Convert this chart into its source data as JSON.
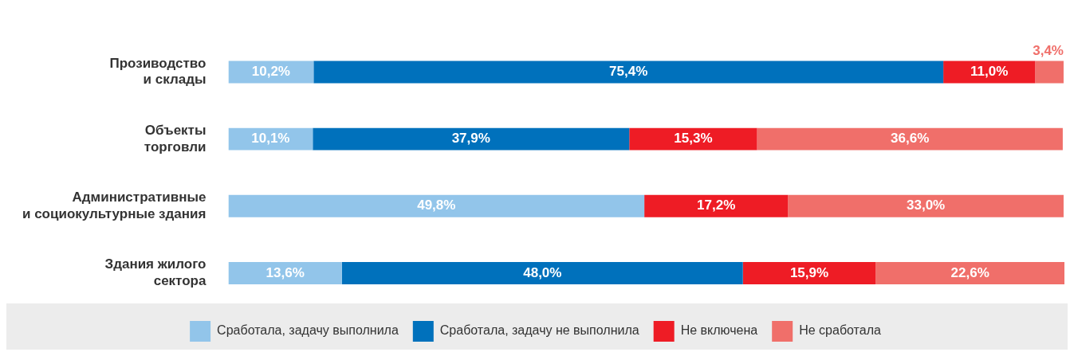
{
  "chart_data": {
    "type": "bar",
    "orientation": "horizontal",
    "stacked": true,
    "categories": [
      "Прозиводство\nи склады",
      "Объекты\nторговли",
      "Административные\nи социокультурные здания",
      "Здания жилого\nсектора"
    ],
    "series": [
      {
        "name": "Сработала, задачу выполнила",
        "color": "#92c5ea",
        "values": [
          10.2,
          10.1,
          49.8,
          13.6
        ],
        "value_labels": [
          "10,2%",
          "10,1%",
          "49,8%",
          "13,6%"
        ]
      },
      {
        "name": "Сработала, задачу не выполнила",
        "color": "#0071bc",
        "values": [
          75.4,
          37.9,
          null,
          48.0
        ],
        "value_labels": [
          "75,4%",
          "37,9%",
          null,
          "48,0%"
        ]
      },
      {
        "name": "Не включена",
        "color": "#ee1c25",
        "values": [
          11.0,
          15.3,
          17.2,
          15.9
        ],
        "value_labels": [
          "11,0%",
          "15,3%",
          "17,2%",
          "15,9%"
        ]
      },
      {
        "name": "Не сработала",
        "color": "#f06f6a",
        "values": [
          3.4,
          36.6,
          33.0,
          22.6
        ],
        "value_labels": [
          "3,4%",
          "36,6%",
          "33,0%",
          "22,6%"
        ]
      }
    ],
    "tick_labels": false,
    "legend": "bottom"
  }
}
